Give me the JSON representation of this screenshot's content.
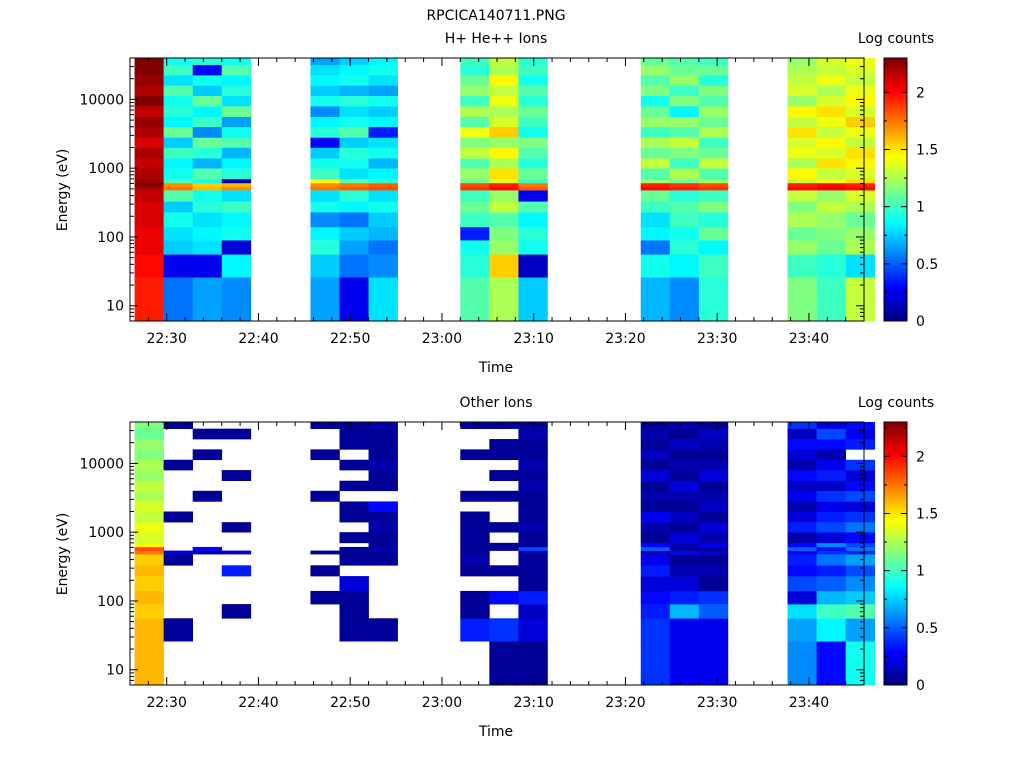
{
  "title": "RPCICA140711.PNG",
  "panels": [
    {
      "id": "h-he",
      "subtitle": "H+ He++ Ions",
      "colorbar_label": "Log counts",
      "xlabel": "Time",
      "ylabel": "Energy (eV)"
    },
    {
      "id": "other",
      "subtitle": "Other Ions",
      "colorbar_label": "Log counts",
      "xlabel": "Time",
      "ylabel": "Energy (eV)"
    }
  ],
  "chart_data": [
    {
      "type": "heatmap",
      "title": "H+ He++ Ions",
      "xlabel": "Time",
      "ylabel": "Energy (eV)",
      "colorbar_label": "Log counts",
      "y_scale": "log",
      "xlim": [
        "22:26",
        "23:46"
      ],
      "ylim": [
        6,
        40000
      ],
      "clim": [
        0,
        2.3
      ],
      "colormap": "jet",
      "x_ticks": [
        "22:30",
        "22:40",
        "22:50",
        "23:00",
        "23:10",
        "23:20",
        "23:30",
        "23:40"
      ],
      "y_ticks": [
        10,
        100,
        1000,
        10000
      ],
      "y_tick_labels": [
        "10",
        "100",
        "1000",
        "10000"
      ],
      "colorbar_ticks": [
        0,
        0.5,
        1,
        1.5,
        2
      ],
      "colorbar_tick_labels": [
        "0",
        "0.5",
        "1",
        "1.5",
        "2"
      ],
      "time_columns": [
        "22:26:30",
        "22:29:40",
        "22:32:50",
        "22:36:00",
        "22:45:40",
        "22:48:50",
        "22:52:00",
        "23:02:00",
        "23:05:10",
        "23:08:20",
        "23:21:40",
        "23:24:50",
        "23:28:00",
        "23:37:40",
        "23:40:50",
        "23:44:00"
      ],
      "column_duration_min": 3.17,
      "energy_bin_edges": [
        6,
        26,
        56,
        90,
        140,
        230,
        330,
        480,
        540,
        610,
        700,
        1000,
        1400,
        2000,
        2800,
        4000,
        5600,
        8000,
        11300,
        16000,
        22600,
        32000,
        40000
      ],
      "rows": [
        {
          "time": "22:26:30",
          "log_counts": [
            1.95,
            2.0,
            2.05,
            2.05,
            2.1,
            2.1,
            2.15,
            2.2,
            2.3,
            2.25,
            2.2,
            2.15,
            2.2,
            2.1,
            2.2,
            2.25,
            2.15,
            2.3,
            2.2,
            2.25,
            2.3,
            2.3
          ]
        },
        {
          "time": "22:29:40",
          "log_counts": [
            0.55,
            0.25,
            0.75,
            0.8,
            0.9,
            0.75,
            1.05,
            1.75,
            1.7,
            1.0,
            0.9,
            0.85,
            1.0,
            0.75,
            1.1,
            0.85,
            0.95,
            0.9,
            1.05,
            0.8,
            1.0,
            0.9
          ]
        },
        {
          "time": "22:32:50",
          "log_counts": [
            0.65,
            0.25,
            0.8,
            0.85,
            0.8,
            0.95,
            0.9,
            1.6,
            1.55,
            0.9,
            1.05,
            0.7,
            0.95,
            1.1,
            0.6,
            1.0,
            0.85,
            1.1,
            0.75,
            0.9,
            0.3,
            0.95
          ]
        },
        {
          "time": "22:36:00",
          "log_counts": [
            0.6,
            0.85,
            0.2,
            0.9,
            0.85,
            1.0,
            0.8,
            1.7,
            1.6,
            0.1,
            0.95,
            0.85,
            0.7,
            1.05,
            0.9,
            0.65,
            1.1,
            0.8,
            0.95,
            0.85,
            1.05,
            0.9
          ]
        },
        {
          "time": "22:45:40",
          "log_counts": [
            0.65,
            0.75,
            0.95,
            0.85,
            0.6,
            0.9,
            0.8,
            1.75,
            1.7,
            1.45,
            1.0,
            0.9,
            0.75,
            0.3,
            0.95,
            0.85,
            0.6,
            0.9,
            0.75,
            0.85,
            0.8,
            0.65
          ]
        },
        {
          "time": "22:48:50",
          "log_counts": [
            0.25,
            0.55,
            0.65,
            0.75,
            0.55,
            0.85,
            0.95,
            1.8,
            1.75,
            1.05,
            0.8,
            0.9,
            0.95,
            0.75,
            1.05,
            0.9,
            0.8,
            0.95,
            0.7,
            0.9,
            0.85,
            0.75
          ]
        },
        {
          "time": "22:52:00",
          "log_counts": [
            0.8,
            0.6,
            0.55,
            0.7,
            0.75,
            0.9,
            0.8,
            1.85,
            1.8,
            0.95,
            0.85,
            0.7,
            0.9,
            0.8,
            0.35,
            0.85,
            0.75,
            0.9,
            0.65,
            0.8,
            0.9,
            0.85
          ]
        },
        {
          "time": "23:02:00",
          "log_counts": [
            1.05,
            0.95,
            0.9,
            0.35,
            1.0,
            1.1,
            1.0,
            1.9,
            1.85,
            1.1,
            1.2,
            1.05,
            1.3,
            1.15,
            1.4,
            1.05,
            1.25,
            1.0,
            1.2,
            1.1,
            0.95,
            1.0
          ]
        },
        {
          "time": "23:05:10",
          "log_counts": [
            1.25,
            1.55,
            1.2,
            1.15,
            1.05,
            1.3,
            1.2,
            2.0,
            1.95,
            1.35,
            1.5,
            1.25,
            1.45,
            1.2,
            1.55,
            1.35,
            1.25,
            1.4,
            1.3,
            1.45,
            1.25,
            1.3
          ]
        },
        {
          "time": "23:08:20",
          "log_counts": [
            0.75,
            0.15,
            0.9,
            0.95,
            0.85,
            1.05,
            0.25,
            1.8,
            1.75,
            1.0,
            1.1,
            0.95,
            1.05,
            1.15,
            0.9,
            1.0,
            1.1,
            0.95,
            1.05,
            0.9,
            1.0,
            0.95
          ]
        },
        {
          "time": "23:21:40",
          "log_counts": [
            0.7,
            0.9,
            0.55,
            0.85,
            0.8,
            1.0,
            1.1,
            2.0,
            1.95,
            1.2,
            1.05,
            1.3,
            1.1,
            1.25,
            1.0,
            1.2,
            1.1,
            0.9,
            1.15,
            1.05,
            1.2,
            1.1
          ]
        },
        {
          "time": "23:24:50",
          "log_counts": [
            0.6,
            0.85,
            0.95,
            0.9,
            1.0,
            1.05,
            0.95,
            1.95,
            1.9,
            1.1,
            1.25,
            1.0,
            1.15,
            1.3,
            1.05,
            1.2,
            0.85,
            1.15,
            1.0,
            1.2,
            1.1,
            1.05
          ]
        },
        {
          "time": "23:28:00",
          "log_counts": [
            0.95,
            1.0,
            0.85,
            1.1,
            0.95,
            1.15,
            1.0,
            1.9,
            1.85,
            1.2,
            1.05,
            1.3,
            1.1,
            1.0,
            1.25,
            1.1,
            1.2,
            1.05,
            1.15,
            0.95,
            1.1,
            1.0
          ]
        },
        {
          "time": "23:37:40",
          "log_counts": [
            1.15,
            1.0,
            1.2,
            1.1,
            1.25,
            1.15,
            1.3,
            2.0,
            1.95,
            1.3,
            1.45,
            1.25,
            1.4,
            1.35,
            1.5,
            1.3,
            1.45,
            1.2,
            1.35,
            1.3,
            1.25,
            1.2
          ]
        },
        {
          "time": "23:40:50",
          "log_counts": [
            1.0,
            0.95,
            1.1,
            1.15,
            1.2,
            1.3,
            1.2,
            2.05,
            2.0,
            1.4,
            1.3,
            1.5,
            1.35,
            1.45,
            1.3,
            1.4,
            1.5,
            1.35,
            1.25,
            1.4,
            1.3,
            1.35
          ]
        },
        {
          "time": "23:44:00",
          "log_counts": [
            1.3,
            0.8,
            1.25,
            1.2,
            1.1,
            1.25,
            1.35,
            2.0,
            1.95,
            1.5,
            1.35,
            1.45,
            1.5,
            1.3,
            1.4,
            1.55,
            1.35,
            1.45,
            1.4,
            1.3,
            1.35,
            1.4
          ]
        }
      ]
    },
    {
      "type": "heatmap",
      "title": "Other Ions",
      "xlabel": "Time",
      "ylabel": "Energy (eV)",
      "colorbar_label": "Log counts",
      "y_scale": "log",
      "xlim": [
        "22:26",
        "23:46"
      ],
      "ylim": [
        6,
        40000
      ],
      "clim": [
        0,
        2.3
      ],
      "colormap": "jet",
      "x_ticks": [
        "22:30",
        "22:40",
        "22:50",
        "23:00",
        "23:10",
        "23:20",
        "23:30",
        "23:40"
      ],
      "y_ticks": [
        10,
        100,
        1000,
        10000
      ],
      "y_tick_labels": [
        "10",
        "100",
        "1000",
        "10000"
      ],
      "colorbar_ticks": [
        0,
        0.5,
        1,
        1.5,
        2
      ],
      "colorbar_tick_labels": [
        "0",
        "0.5",
        "1",
        "1.5",
        "2"
      ],
      "time_columns": [
        "22:26:30",
        "22:29:40",
        "22:32:50",
        "22:36:00",
        "22:45:40",
        "22:48:50",
        "22:52:00",
        "23:02:00",
        "23:05:10",
        "23:08:20",
        "23:21:40",
        "23:24:50",
        "23:28:00",
        "23:37:40",
        "23:40:50",
        "23:44:00"
      ],
      "column_duration_min": 3.17,
      "energy_bin_edges": [
        6,
        26,
        56,
        90,
        140,
        230,
        330,
        480,
        540,
        610,
        700,
        1000,
        1400,
        2000,
        2800,
        4000,
        5600,
        8000,
        11300,
        16000,
        22600,
        32000,
        40000
      ],
      "note_null": "null = no counts (white)",
      "rows": [
        {
          "time": "22:26:30",
          "log_counts": [
            1.6,
            1.6,
            1.55,
            1.6,
            1.55,
            1.6,
            1.55,
            1.75,
            1.85,
            1.45,
            1.35,
            1.4,
            1.3,
            1.35,
            1.25,
            1.3,
            1.2,
            1.25,
            1.15,
            1.2,
            1.1,
            1.15
          ]
        },
        {
          "time": "22:29:40",
          "log_counts": [
            null,
            0.05,
            null,
            null,
            null,
            null,
            0.05,
            0.2,
            null,
            null,
            null,
            null,
            0.05,
            null,
            null,
            null,
            null,
            0.05,
            null,
            null,
            null,
            0.05
          ]
        },
        {
          "time": "22:32:50",
          "log_counts": [
            null,
            null,
            null,
            null,
            null,
            null,
            null,
            0.1,
            0.3,
            null,
            null,
            null,
            null,
            null,
            0.05,
            null,
            null,
            null,
            0.05,
            null,
            0.05,
            null
          ]
        },
        {
          "time": "22:36:00",
          "log_counts": [
            null,
            null,
            0.05,
            null,
            null,
            0.35,
            null,
            0.2,
            null,
            null,
            null,
            0.05,
            null,
            null,
            null,
            null,
            0.05,
            null,
            null,
            null,
            0.05,
            null
          ]
        },
        {
          "time": "22:45:40",
          "log_counts": [
            null,
            null,
            null,
            0.05,
            null,
            0.05,
            null,
            0.05,
            null,
            null,
            null,
            null,
            null,
            null,
            0.05,
            null,
            null,
            null,
            0.05,
            null,
            null,
            0.05
          ]
        },
        {
          "time": "22:48:50",
          "log_counts": [
            null,
            0.05,
            0.05,
            0.05,
            0.2,
            null,
            0.05,
            0.05,
            0.05,
            null,
            0.05,
            null,
            0.05,
            0.05,
            null,
            0.05,
            null,
            0.05,
            null,
            0.05,
            0.05,
            0.05
          ]
        },
        {
          "time": "22:52:00",
          "log_counts": [
            null,
            0.05,
            null,
            null,
            null,
            null,
            0.05,
            0.05,
            0.1,
            0.05,
            0.05,
            0.1,
            0.05,
            0.3,
            null,
            0.05,
            0.05,
            0.1,
            0.05,
            0.05,
            0.05,
            0.1
          ]
        },
        {
          "time": "23:02:00",
          "log_counts": [
            null,
            0.35,
            0.05,
            0.05,
            null,
            0.05,
            0.1,
            0.05,
            0.05,
            0.05,
            0.05,
            0.05,
            0.05,
            null,
            0.05,
            null,
            null,
            null,
            0.05,
            null,
            null,
            0.05
          ]
        },
        {
          "time": "23:05:10",
          "log_counts": [
            0.05,
            0.4,
            null,
            0.3,
            null,
            0.05,
            null,
            null,
            0.05,
            0.05,
            null,
            0.05,
            null,
            null,
            0.05,
            null,
            0.05,
            null,
            0.05,
            0.05,
            null,
            0.05
          ]
        },
        {
          "time": "23:08:20",
          "log_counts": [
            0.05,
            0.2,
            0.15,
            0.35,
            0.05,
            0.05,
            0.05,
            0.1,
            0.45,
            0.05,
            0.05,
            0.1,
            0.05,
            0.05,
            0.05,
            0.1,
            0.05,
            0.1,
            0.05,
            0.05,
            0.1,
            0.05
          ]
        },
        {
          "time": "23:21:40",
          "log_counts": [
            0.4,
            0.4,
            0.35,
            0.3,
            0.2,
            0.35,
            0.25,
            0.1,
            0.5,
            0.3,
            0.05,
            0.1,
            0.25,
            0.05,
            0.1,
            0.05,
            0.2,
            0.05,
            0.15,
            0.05,
            0.1,
            0.05
          ]
        },
        {
          "time": "23:24:50",
          "log_counts": [
            0.25,
            0.25,
            0.7,
            0.35,
            0.2,
            0.1,
            0.05,
            0.3,
            0.05,
            0.1,
            0.2,
            0.05,
            0.15,
            0.05,
            0.1,
            0.2,
            0.05,
            0.1,
            0.05,
            0.15,
            0.05,
            0.1
          ]
        },
        {
          "time": "23:28:00",
          "log_counts": [
            0.25,
            0.25,
            0.5,
            0.4,
            0.05,
            0.1,
            0.05,
            0.2,
            0.05,
            0.25,
            0.1,
            0.2,
            0.05,
            0.15,
            0.1,
            0.05,
            0.2,
            0.1,
            0.05,
            0.1,
            0.15,
            0.05
          ]
        },
        {
          "time": "23:37:40",
          "log_counts": [
            0.6,
            0.65,
            0.8,
            0.2,
            0.45,
            0.3,
            0.35,
            0.25,
            0.5,
            0.3,
            0.1,
            0.35,
            0.2,
            0.1,
            0.25,
            0.15,
            0.3,
            0.1,
            0.2,
            0.3,
            0.15,
            0.4
          ]
        },
        {
          "time": "23:40:50",
          "log_counts": [
            0.3,
            0.85,
            1.0,
            0.7,
            0.5,
            0.35,
            0.55,
            0.4,
            0.3,
            0.6,
            0.2,
            0.45,
            0.35,
            0.25,
            0.4,
            0.15,
            0.35,
            0.25,
            0.1,
            0.3,
            0.45,
            0.2
          ]
        },
        {
          "time": "23:44:00",
          "log_counts": [
            0.9,
            0.65,
            1.05,
            0.75,
            0.6,
            0.45,
            0.65,
            0.35,
            0.55,
            0.45,
            0.3,
            0.55,
            0.4,
            0.2,
            0.45,
            0.3,
            0.2,
            0.4,
            null,
            0.35,
            0.25,
            0.3
          ]
        }
      ]
    }
  ]
}
